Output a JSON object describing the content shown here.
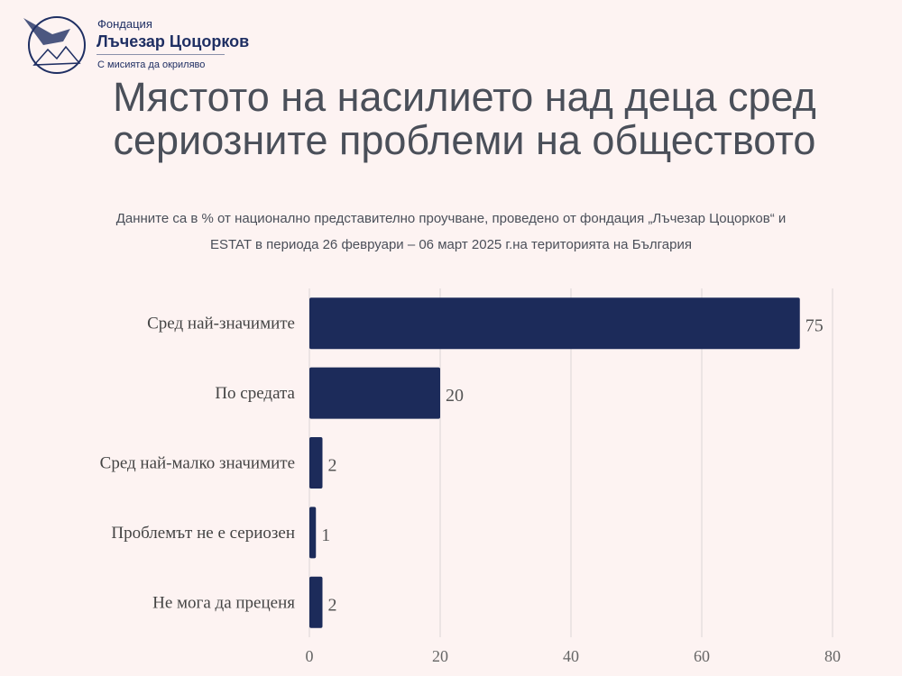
{
  "logo": {
    "line1": "Фондация",
    "line2": "Лъчезар Цоцорков",
    "line3": "С мисията да окриляво"
  },
  "chart_data": {
    "type": "bar",
    "orientation": "horizontal",
    "title": "Мястото на насилието над деца сред сериозните проблеми на обществото",
    "subtitle": "Данните са в % от национално представително проучване, проведено от фондация „Лъчезар Цоцорков“ и ESTAT в периода 26 февруари – 06 март 2025 г.на територията на България",
    "categories": [
      "Сред най-значимите",
      "По средата",
      "Сред най-малко значимите",
      "Проблемът не е сериозен",
      "Не мога да преценя"
    ],
    "values": [
      75,
      20,
      2,
      1,
      2
    ],
    "xlim": [
      0,
      80
    ],
    "xticks": [
      "0",
      "20",
      "40",
      "60",
      "80"
    ],
    "grid": true,
    "bar_color": "#1c2b5a"
  }
}
